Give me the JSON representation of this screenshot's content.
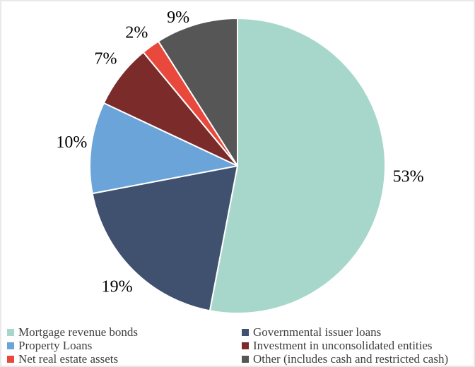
{
  "chart_data": {
    "type": "pie",
    "title": "",
    "legend_position": "bottom",
    "legend_columns": 2,
    "direction": "clockwise",
    "start_angle_deg": 0,
    "slices": [
      {
        "label": "Mortgage revenue bonds",
        "value": 53,
        "pct_label": "53%",
        "color": "#a7d7cb"
      },
      {
        "label": "Governmental issuer loans",
        "value": 19,
        "pct_label": "19%",
        "color": "#40516f"
      },
      {
        "label": "Property Loans",
        "value": 10,
        "pct_label": "10%",
        "color": "#6aa4d8"
      },
      {
        "label": "Investment in unconsolidated entities",
        "value": 7,
        "pct_label": "7%",
        "color": "#7c2b2b"
      },
      {
        "label": "Net real estate assets",
        "value": 2,
        "pct_label": "2%",
        "color": "#e8493c"
      },
      {
        "label": "Other (includes cash and restricted cash)",
        "value": 9,
        "pct_label": "9%",
        "color": "#565656"
      }
    ],
    "slice_border_color": "#ffffff",
    "label_color": "#000000",
    "legend_text_color": "#404040",
    "frame_border_color": "#e9e9e9"
  }
}
